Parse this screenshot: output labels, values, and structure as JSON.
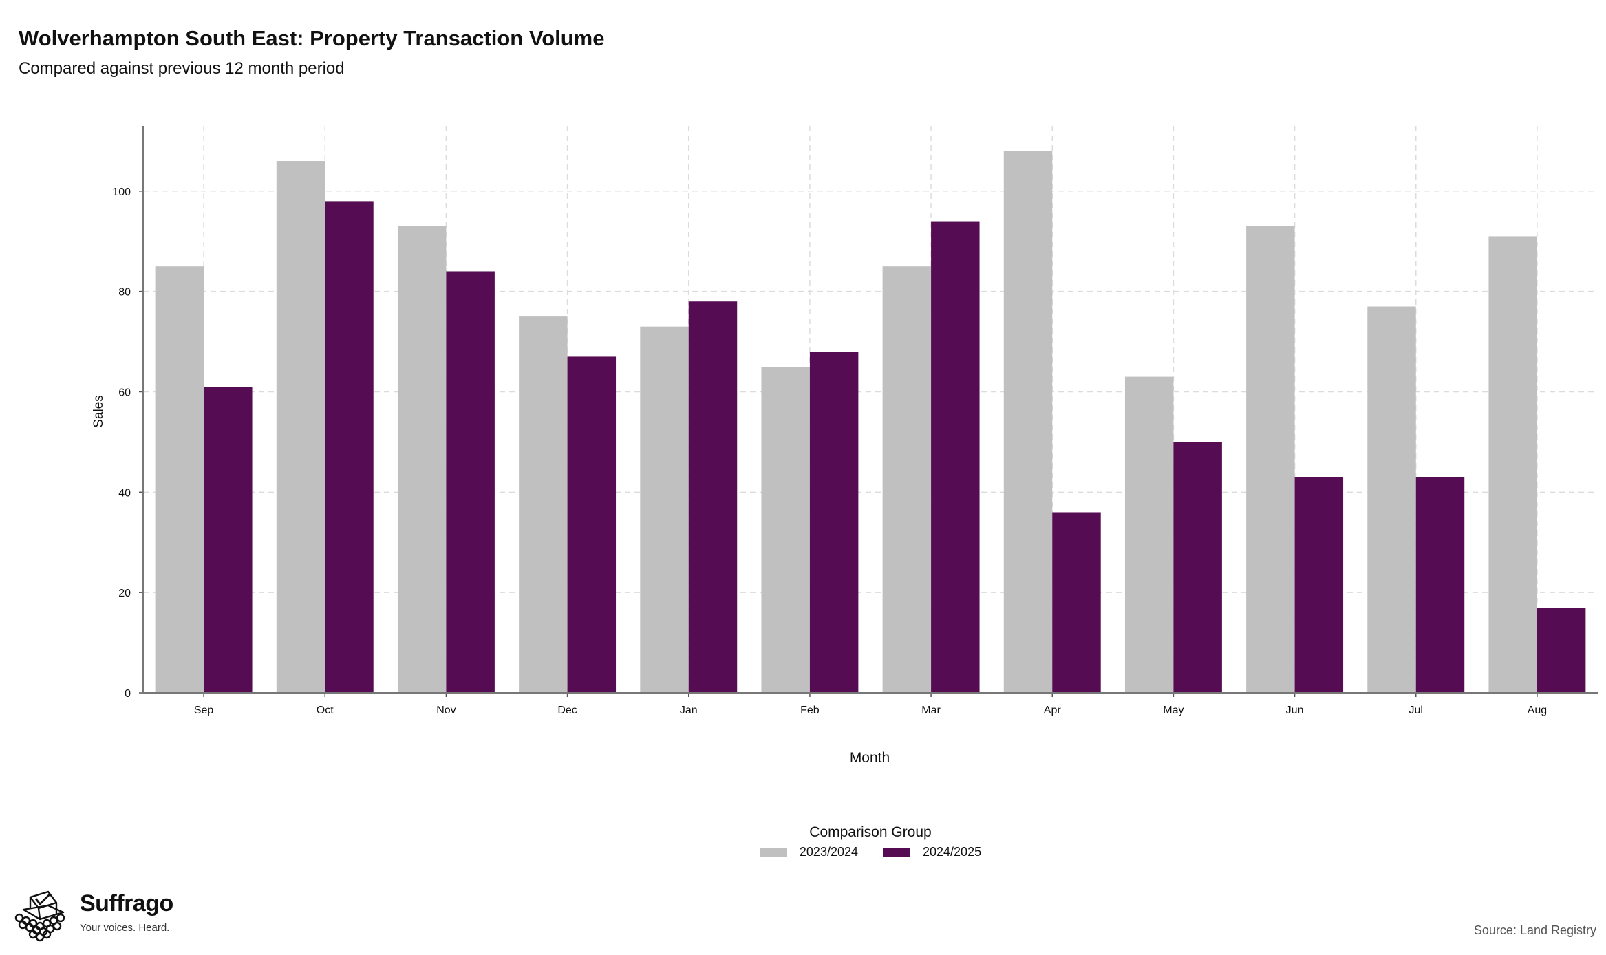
{
  "header": {
    "title": "Wolverhampton South East: Property Transaction Volume",
    "subtitle": "Compared against previous 12 month period"
  },
  "legend": {
    "title": "Comparison Group",
    "items": [
      {
        "label": "2023/2024",
        "color": "#c0c0c0"
      },
      {
        "label": "2024/2025",
        "color": "#560c53"
      }
    ]
  },
  "footer": {
    "brand": "Suffrago",
    "tagline": "Your voices. Heard.",
    "source": "Source: Land Registry"
  },
  "chart_data": {
    "type": "bar",
    "title": "Wolverhampton South East: Property Transaction Volume",
    "subtitle": "Compared against previous 12 month period",
    "xlabel": "Month",
    "ylabel": "Sales",
    "categories": [
      "Sep",
      "Oct",
      "Nov",
      "Dec",
      "Jan",
      "Feb",
      "Mar",
      "Apr",
      "May",
      "Jun",
      "Jul",
      "Aug"
    ],
    "series": [
      {
        "name": "2023/2024",
        "color": "#c0c0c0",
        "values": [
          85,
          106,
          93,
          75,
          73,
          65,
          85,
          108,
          63,
          93,
          77,
          91
        ]
      },
      {
        "name": "2024/2025",
        "color": "#560c53",
        "values": [
          61,
          98,
          84,
          67,
          78,
          68,
          94,
          36,
          50,
          43,
          43,
          17
        ]
      }
    ],
    "ylim": [
      0,
      113
    ],
    "yticks": [
      0,
      20,
      40,
      60,
      80,
      100
    ],
    "grid": true,
    "legend_position": "bottom"
  }
}
